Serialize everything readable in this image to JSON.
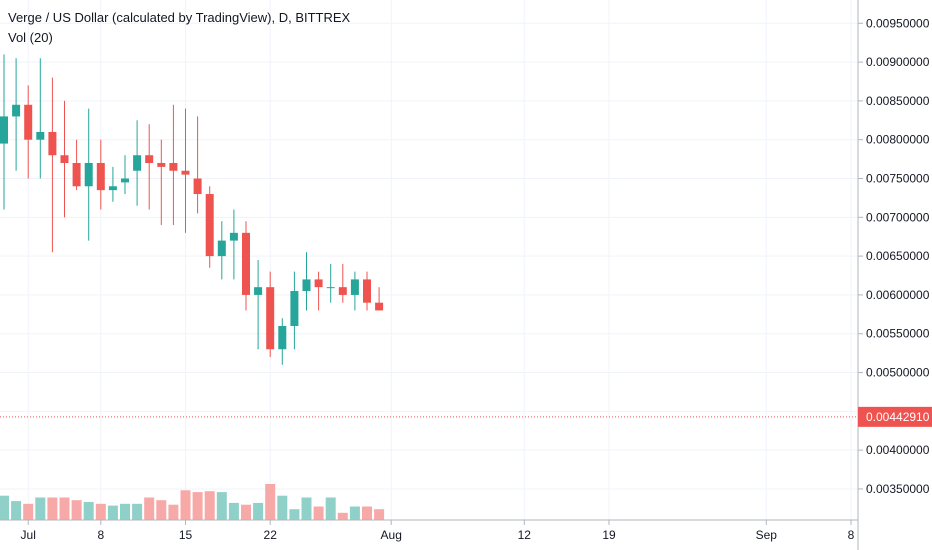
{
  "legend": {
    "title": "Verge / US Dollar (calculated by TradingView), D, BITTREX",
    "volume": "Vol (20)"
  },
  "colors": {
    "up": "#26a69a",
    "down": "#ef5350",
    "vol_up": "#8fd0c8",
    "vol_down": "#f7a9a7",
    "grid": "#f0f3fa",
    "axis_text": "#131722",
    "price_line": "#ef5350",
    "price_label_bg": "#ef5350",
    "price_label_text": "#ffffff"
  },
  "chart_data": {
    "type": "candlestick",
    "ylim": [
      0.0031,
      0.0098
    ],
    "y_ticks": [
      "0.00350000",
      "0.00400000",
      "0.00450000",
      "0.00500000",
      "0.00550000",
      "0.00600000",
      "0.00650000",
      "0.00700000",
      "0.00750000",
      "0.00800000",
      "0.00850000",
      "0.00900000",
      "0.00950000"
    ],
    "x_labels": [
      {
        "label": "Jul",
        "day": 2
      },
      {
        "label": "8",
        "day": 8
      },
      {
        "label": "15",
        "day": 15
      },
      {
        "label": "22",
        "day": 22
      },
      {
        "label": "Aug",
        "day": 32
      },
      {
        "label": "12",
        "day": 43
      },
      {
        "label": "19",
        "day": 50
      },
      {
        "label": "Sep",
        "day": 63
      },
      {
        "label": "8",
        "day": 70
      }
    ],
    "last_price": "0.00442910",
    "last_price_value": 0.0044291,
    "candles": [
      {
        "day": 0,
        "o": 0.00795,
        "h": 0.0091,
        "l": 0.0071,
        "c": 0.0083,
        "v": 0.27
      },
      {
        "day": 1,
        "o": 0.0083,
        "h": 0.00905,
        "l": 0.0076,
        "c": 0.00845,
        "v": 0.21
      },
      {
        "day": 2,
        "o": 0.00845,
        "h": 0.0087,
        "l": 0.0075,
        "c": 0.008,
        "v": 0.18
      },
      {
        "day": 3,
        "o": 0.008,
        "h": 0.00905,
        "l": 0.0075,
        "c": 0.0081,
        "v": 0.25
      },
      {
        "day": 4,
        "o": 0.0081,
        "h": 0.0088,
        "l": 0.00655,
        "c": 0.0078,
        "v": 0.25
      },
      {
        "day": 5,
        "o": 0.0078,
        "h": 0.0085,
        "l": 0.007,
        "c": 0.0077,
        "v": 0.25
      },
      {
        "day": 6,
        "o": 0.0077,
        "h": 0.008,
        "l": 0.00735,
        "c": 0.0074,
        "v": 0.22
      },
      {
        "day": 7,
        "o": 0.0074,
        "h": 0.0084,
        "l": 0.0067,
        "c": 0.0077,
        "v": 0.2
      },
      {
        "day": 8,
        "o": 0.0077,
        "h": 0.008,
        "l": 0.0071,
        "c": 0.00735,
        "v": 0.18
      },
      {
        "day": 9,
        "o": 0.00735,
        "h": 0.00765,
        "l": 0.0072,
        "c": 0.0074,
        "v": 0.16
      },
      {
        "day": 10,
        "o": 0.00745,
        "h": 0.0078,
        "l": 0.0073,
        "c": 0.0075,
        "v": 0.18
      },
      {
        "day": 11,
        "o": 0.0076,
        "h": 0.00825,
        "l": 0.00715,
        "c": 0.0078,
        "v": 0.18
      },
      {
        "day": 12,
        "o": 0.0078,
        "h": 0.0082,
        "l": 0.0071,
        "c": 0.0077,
        "v": 0.25
      },
      {
        "day": 13,
        "o": 0.0077,
        "h": 0.008,
        "l": 0.0069,
        "c": 0.00765,
        "v": 0.22
      },
      {
        "day": 14,
        "o": 0.0077,
        "h": 0.00845,
        "l": 0.0069,
        "c": 0.0076,
        "v": 0.17
      },
      {
        "day": 15,
        "o": 0.0076,
        "h": 0.0084,
        "l": 0.0068,
        "c": 0.00755,
        "v": 0.33
      },
      {
        "day": 16,
        "o": 0.0075,
        "h": 0.0083,
        "l": 0.00705,
        "c": 0.0073,
        "v": 0.31
      },
      {
        "day": 17,
        "o": 0.0073,
        "h": 0.0074,
        "l": 0.00635,
        "c": 0.0065,
        "v": 0.32
      },
      {
        "day": 18,
        "o": 0.0065,
        "h": 0.00695,
        "l": 0.0062,
        "c": 0.0067,
        "v": 0.31
      },
      {
        "day": 19,
        "o": 0.0067,
        "h": 0.0071,
        "l": 0.0062,
        "c": 0.0068,
        "v": 0.19
      },
      {
        "day": 20,
        "o": 0.0068,
        "h": 0.00695,
        "l": 0.0058,
        "c": 0.006,
        "v": 0.17
      },
      {
        "day": 21,
        "o": 0.006,
        "h": 0.00645,
        "l": 0.0053,
        "c": 0.0061,
        "v": 0.19
      },
      {
        "day": 22,
        "o": 0.0061,
        "h": 0.0063,
        "l": 0.0052,
        "c": 0.0053,
        "v": 0.4
      },
      {
        "day": 23,
        "o": 0.0053,
        "h": 0.0057,
        "l": 0.0051,
        "c": 0.0056,
        "v": 0.27
      },
      {
        "day": 24,
        "o": 0.0056,
        "h": 0.0063,
        "l": 0.0053,
        "c": 0.00605,
        "v": 0.12
      },
      {
        "day": 25,
        "o": 0.00605,
        "h": 0.00655,
        "l": 0.0058,
        "c": 0.0062,
        "v": 0.25
      },
      {
        "day": 26,
        "o": 0.0062,
        "h": 0.0063,
        "l": 0.0058,
        "c": 0.0061,
        "v": 0.15
      },
      {
        "day": 27,
        "o": 0.0061,
        "h": 0.0064,
        "l": 0.0059,
        "c": 0.0061,
        "v": 0.25
      },
      {
        "day": 28,
        "o": 0.0061,
        "h": 0.0064,
        "l": 0.0059,
        "c": 0.006,
        "v": 0.08
      },
      {
        "day": 29,
        "o": 0.006,
        "h": 0.0063,
        "l": 0.0058,
        "c": 0.0062,
        "v": 0.15
      },
      {
        "day": 30,
        "o": 0.0062,
        "h": 0.0063,
        "l": 0.0058,
        "c": 0.0059,
        "v": 0.15
      },
      {
        "day": 31,
        "o": 0.0059,
        "h": 0.0061,
        "l": 0.0058,
        "c": 0.0058,
        "v": 0.12
      }
    ]
  }
}
